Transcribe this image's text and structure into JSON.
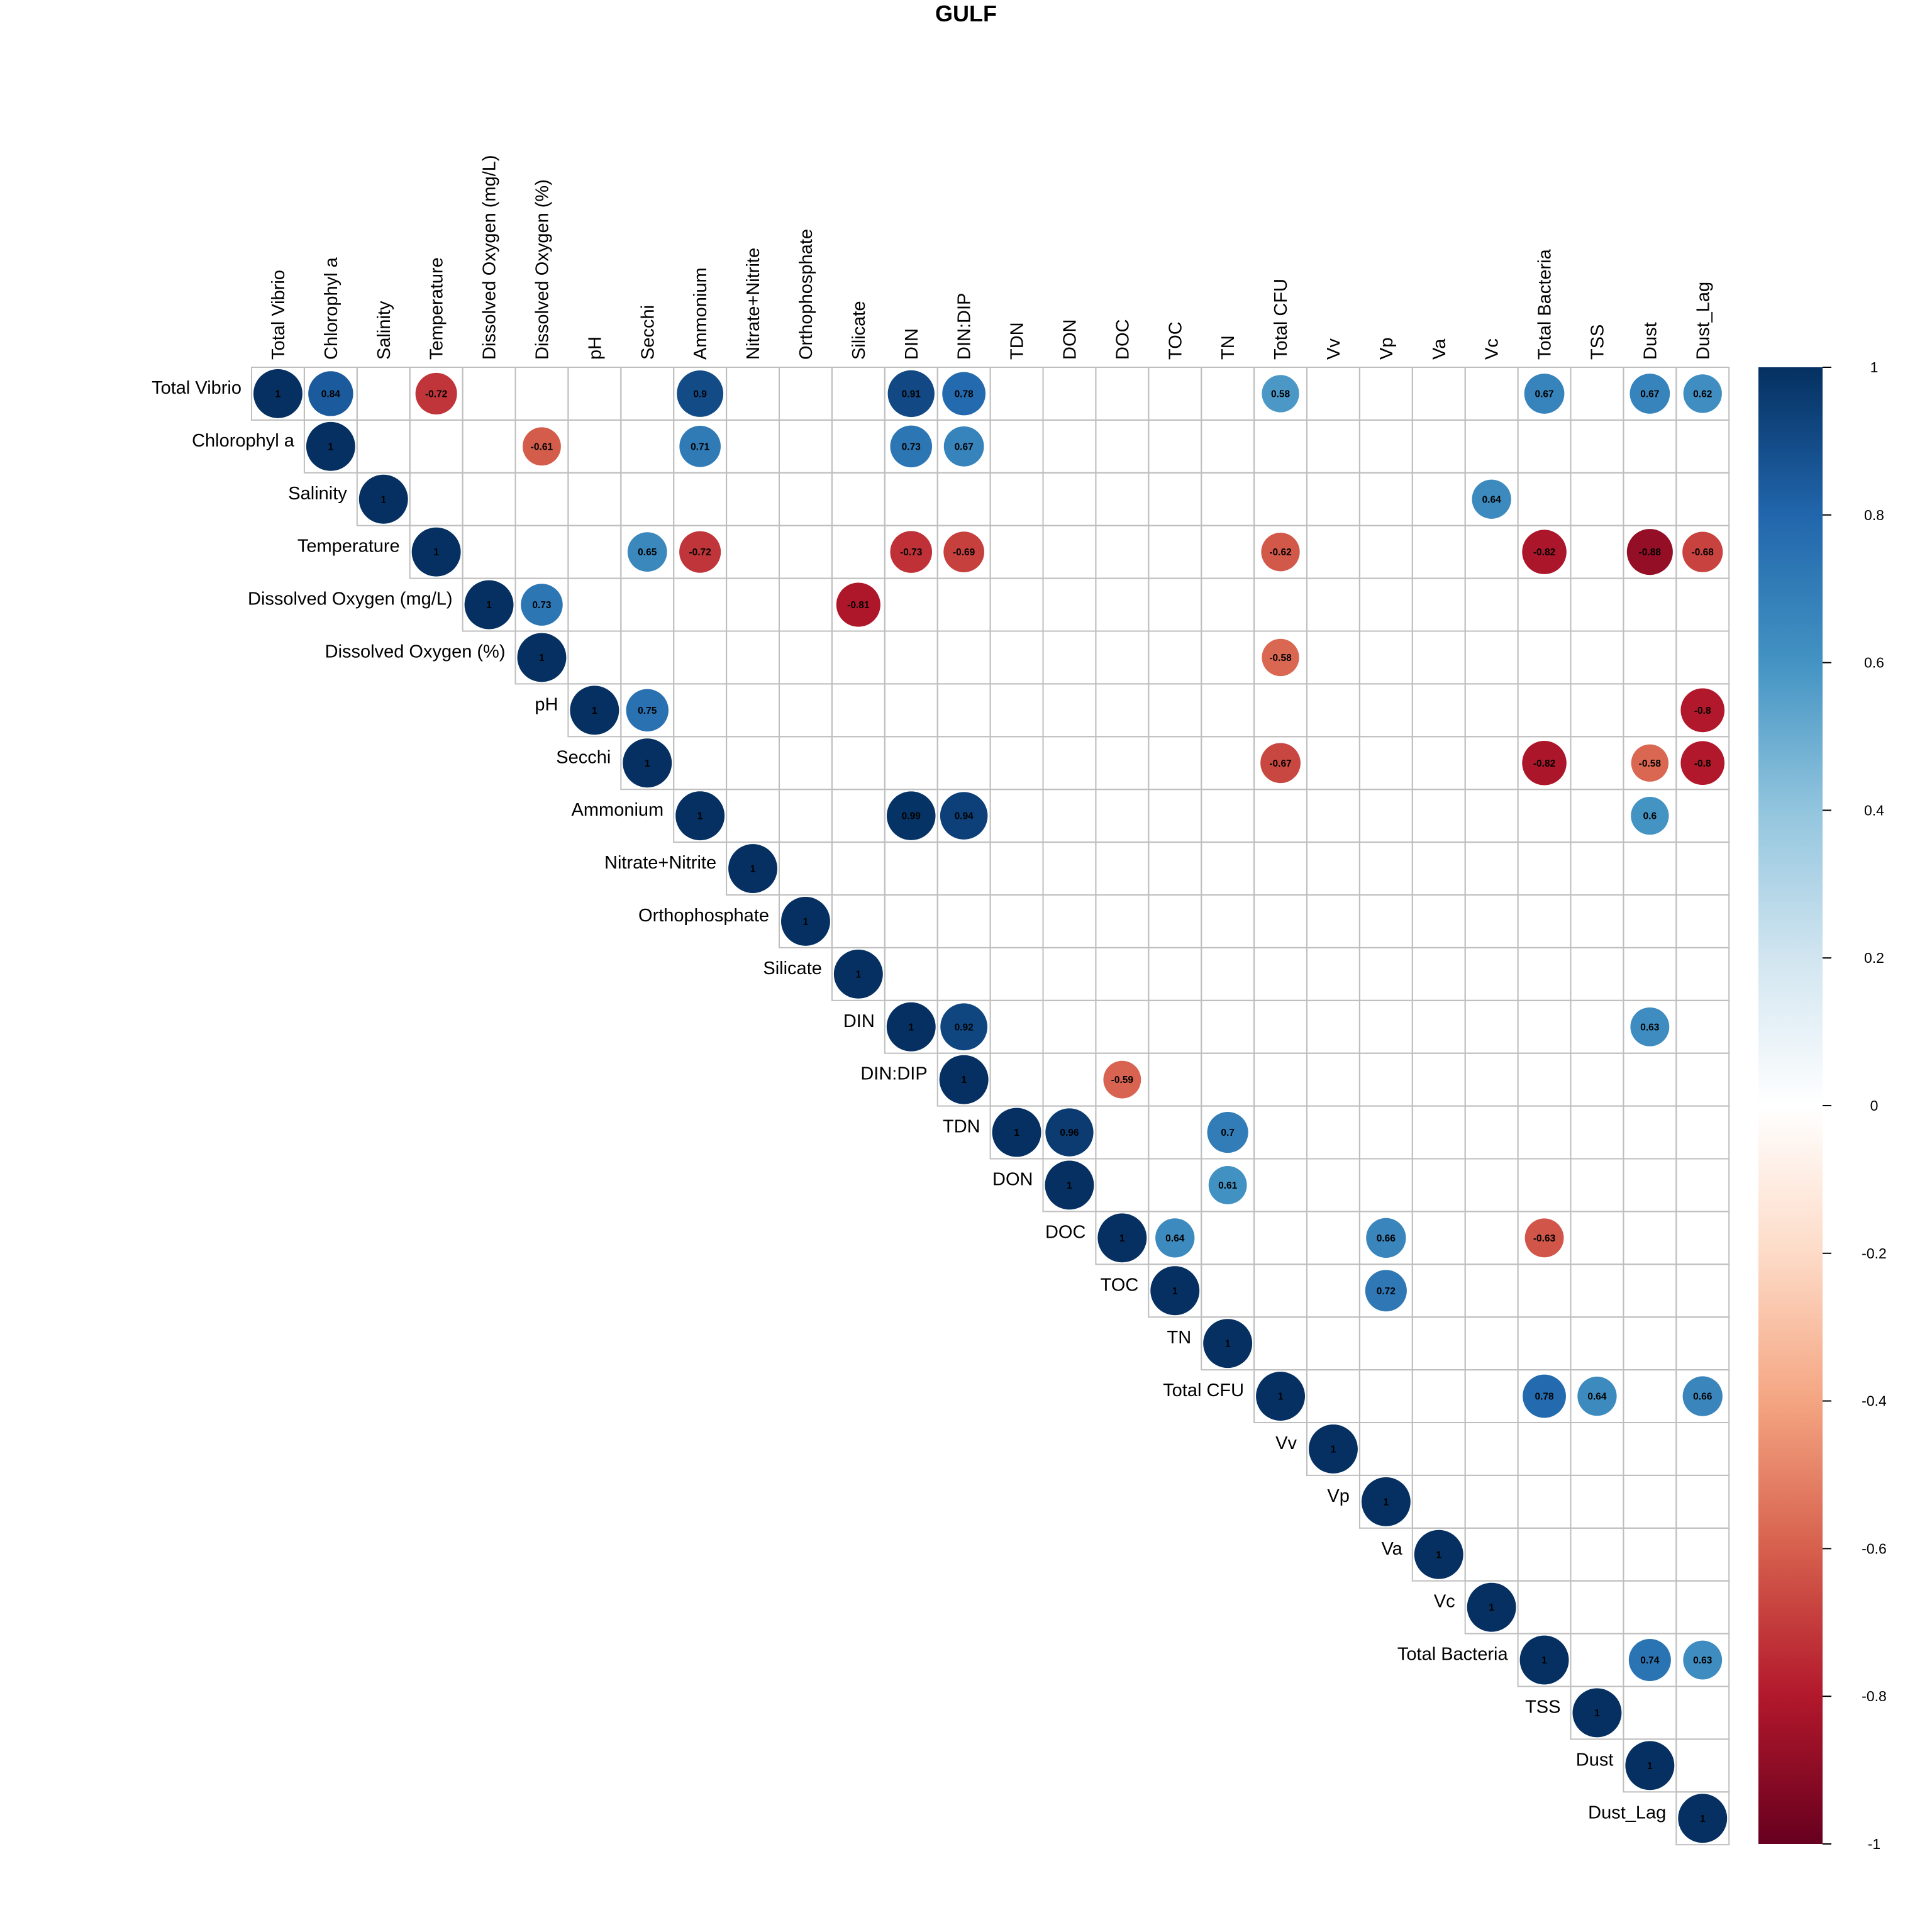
{
  "chart_data": {
    "type": "heatmap",
    "subtype": "correlation-matrix-upper-circles",
    "title": "GULF",
    "variables": [
      "Total Vibrio",
      "Chlorophyl a",
      "Salinity",
      "Temperature",
      "Dissolved Oxygen (mg/L)",
      "Dissolved Oxygen (%)",
      "pH",
      "Secchi",
      "Ammonium",
      "Nitrate+Nitrite",
      "Orthophosphate",
      "Silicate",
      "DIN",
      "DIN:DIP",
      "TDN",
      "DON",
      "DOC",
      "TOC",
      "TN",
      "Total CFU",
      "Vv",
      "Vp",
      "Va",
      "Vc",
      "Total Bacteria",
      "TSS",
      "Dust",
      "Dust_Lag"
    ],
    "correlations": [
      {
        "row": "Total Vibrio",
        "col": "Total Vibrio",
        "value": 1,
        "label": "1"
      },
      {
        "row": "Total Vibrio",
        "col": "Chlorophyl a",
        "value": 0.84,
        "label": "0.84"
      },
      {
        "row": "Total Vibrio",
        "col": "Temperature",
        "value": -0.72,
        "label": "-0.72"
      },
      {
        "row": "Total Vibrio",
        "col": "Ammonium",
        "value": 0.9,
        "label": "0.9"
      },
      {
        "row": "Total Vibrio",
        "col": "DIN",
        "value": 0.91,
        "label": "0.91"
      },
      {
        "row": "Total Vibrio",
        "col": "DIN:DIP",
        "value": 0.78,
        "label": "0.78"
      },
      {
        "row": "Total Vibrio",
        "col": "Total CFU",
        "value": 0.58,
        "label": "0.58"
      },
      {
        "row": "Total Vibrio",
        "col": "Total Bacteria",
        "value": 0.67,
        "label": "0.67"
      },
      {
        "row": "Total Vibrio",
        "col": "Dust",
        "value": 0.67,
        "label": "0.67"
      },
      {
        "row": "Total Vibrio",
        "col": "Dust_Lag",
        "value": 0.62,
        "label": "0.62"
      },
      {
        "row": "Chlorophyl a",
        "col": "Chlorophyl a",
        "value": 1,
        "label": "1"
      },
      {
        "row": "Chlorophyl a",
        "col": "Dissolved Oxygen (%)",
        "value": -0.61,
        "label": "-0.61"
      },
      {
        "row": "Chlorophyl a",
        "col": "Ammonium",
        "value": 0.71,
        "label": "0.71"
      },
      {
        "row": "Chlorophyl a",
        "col": "DIN",
        "value": 0.73,
        "label": "0.73"
      },
      {
        "row": "Chlorophyl a",
        "col": "DIN:DIP",
        "value": 0.67,
        "label": "0.67"
      },
      {
        "row": "Salinity",
        "col": "Salinity",
        "value": 1,
        "label": "1"
      },
      {
        "row": "Salinity",
        "col": "Vc",
        "value": 0.64,
        "label": "0.64"
      },
      {
        "row": "Temperature",
        "col": "Temperature",
        "value": 1,
        "label": "1"
      },
      {
        "row": "Temperature",
        "col": "Secchi",
        "value": 0.65,
        "label": "0.65"
      },
      {
        "row": "Temperature",
        "col": "Ammonium",
        "value": -0.72,
        "label": "-0.72"
      },
      {
        "row": "Temperature",
        "col": "DIN",
        "value": -0.73,
        "label": "-0.73"
      },
      {
        "row": "Temperature",
        "col": "DIN:DIP",
        "value": -0.69,
        "label": "-0.69"
      },
      {
        "row": "Temperature",
        "col": "Total CFU",
        "value": -0.62,
        "label": "-0.62"
      },
      {
        "row": "Temperature",
        "col": "Total Bacteria",
        "value": -0.82,
        "label": "-0.82"
      },
      {
        "row": "Temperature",
        "col": "Dust",
        "value": -0.88,
        "label": "-0.88"
      },
      {
        "row": "Temperature",
        "col": "Dust_Lag",
        "value": -0.68,
        "label": "-0.68"
      },
      {
        "row": "Dissolved Oxygen (mg/L)",
        "col": "Dissolved Oxygen (mg/L)",
        "value": 1,
        "label": "1"
      },
      {
        "row": "Dissolved Oxygen (mg/L)",
        "col": "Dissolved Oxygen (%)",
        "value": 0.73,
        "label": "0.73"
      },
      {
        "row": "Dissolved Oxygen (mg/L)",
        "col": "Silicate",
        "value": -0.81,
        "label": "-0.81"
      },
      {
        "row": "Dissolved Oxygen (%)",
        "col": "Dissolved Oxygen (%)",
        "value": 1,
        "label": "1"
      },
      {
        "row": "Dissolved Oxygen (%)",
        "col": "Total CFU",
        "value": -0.58,
        "label": "-0.58"
      },
      {
        "row": "pH",
        "col": "pH",
        "value": 1,
        "label": "1"
      },
      {
        "row": "pH",
        "col": "Secchi",
        "value": 0.75,
        "label": "0.75"
      },
      {
        "row": "pH",
        "col": "Dust_Lag",
        "value": -0.8,
        "label": "-0.8"
      },
      {
        "row": "Secchi",
        "col": "Secchi",
        "value": 1,
        "label": "1"
      },
      {
        "row": "Secchi",
        "col": "Total CFU",
        "value": -0.67,
        "label": "-0.67"
      },
      {
        "row": "Secchi",
        "col": "Total Bacteria",
        "value": -0.82,
        "label": "-0.82"
      },
      {
        "row": "Secchi",
        "col": "Dust",
        "value": -0.58,
        "label": "-0.58"
      },
      {
        "row": "Secchi",
        "col": "Dust_Lag",
        "value": -0.8,
        "label": "-0.8"
      },
      {
        "row": "Ammonium",
        "col": "Ammonium",
        "value": 1,
        "label": "1"
      },
      {
        "row": "Ammonium",
        "col": "DIN",
        "value": 0.99,
        "label": "0.99"
      },
      {
        "row": "Ammonium",
        "col": "DIN:DIP",
        "value": 0.94,
        "label": "0.94"
      },
      {
        "row": "Ammonium",
        "col": "Dust",
        "value": 0.6,
        "label": "0.6"
      },
      {
        "row": "Nitrate+Nitrite",
        "col": "Nitrate+Nitrite",
        "value": 1,
        "label": "1"
      },
      {
        "row": "Orthophosphate",
        "col": "Orthophosphate",
        "value": 1,
        "label": "1"
      },
      {
        "row": "Silicate",
        "col": "Silicate",
        "value": 1,
        "label": "1"
      },
      {
        "row": "DIN",
        "col": "DIN",
        "value": 1,
        "label": "1"
      },
      {
        "row": "DIN",
        "col": "DIN:DIP",
        "value": 0.92,
        "label": "0.92"
      },
      {
        "row": "DIN",
        "col": "Dust",
        "value": 0.63,
        "label": "0.63"
      },
      {
        "row": "DIN:DIP",
        "col": "DIN:DIP",
        "value": 1,
        "label": "1"
      },
      {
        "row": "DIN:DIP",
        "col": "DOC",
        "value": -0.59,
        "label": "-0.59"
      },
      {
        "row": "TDN",
        "col": "TDN",
        "value": 1,
        "label": "1"
      },
      {
        "row": "TDN",
        "col": "DON",
        "value": 0.96,
        "label": "0.96"
      },
      {
        "row": "TDN",
        "col": "TN",
        "value": 0.7,
        "label": "0.7"
      },
      {
        "row": "DON",
        "col": "DON",
        "value": 1,
        "label": "1"
      },
      {
        "row": "DON",
        "col": "TN",
        "value": 0.61,
        "label": "0.61"
      },
      {
        "row": "DOC",
        "col": "DOC",
        "value": 1,
        "label": "1"
      },
      {
        "row": "DOC",
        "col": "TOC",
        "value": 0.64,
        "label": "0.64"
      },
      {
        "row": "DOC",
        "col": "Vp",
        "value": 0.66,
        "label": "0.66"
      },
      {
        "row": "DOC",
        "col": "Total Bacteria",
        "value": -0.63,
        "label": "-0.63"
      },
      {
        "row": "TOC",
        "col": "TOC",
        "value": 1,
        "label": "1"
      },
      {
        "row": "TOC",
        "col": "Vp",
        "value": 0.72,
        "label": "0.72"
      },
      {
        "row": "TN",
        "col": "TN",
        "value": 1,
        "label": "1"
      },
      {
        "row": "Total CFU",
        "col": "Total CFU",
        "value": 1,
        "label": "1"
      },
      {
        "row": "Total CFU",
        "col": "Total Bacteria",
        "value": 0.78,
        "label": "0.78"
      },
      {
        "row": "Total CFU",
        "col": "TSS",
        "value": 0.64,
        "label": "0.64"
      },
      {
        "row": "Total CFU",
        "col": "Dust_Lag",
        "value": 0.66,
        "label": "0.66"
      },
      {
        "row": "Vv",
        "col": "Vv",
        "value": 1,
        "label": "1"
      },
      {
        "row": "Vp",
        "col": "Vp",
        "value": 1,
        "label": "1"
      },
      {
        "row": "Va",
        "col": "Va",
        "value": 1,
        "label": "1"
      },
      {
        "row": "Vc",
        "col": "Vc",
        "value": 1,
        "label": "1"
      },
      {
        "row": "Total Bacteria",
        "col": "Total Bacteria",
        "value": 1,
        "label": "1"
      },
      {
        "row": "Total Bacteria",
        "col": "Dust",
        "value": 0.74,
        "label": "0.74"
      },
      {
        "row": "Total Bacteria",
        "col": "Dust_Lag",
        "value": 0.63,
        "label": "0.63"
      },
      {
        "row": "TSS",
        "col": "TSS",
        "value": 1,
        "label": "1"
      },
      {
        "row": "Dust",
        "col": "Dust",
        "value": 1,
        "label": "1"
      },
      {
        "row": "Dust_Lag",
        "col": "Dust_Lag",
        "value": 1,
        "label": "1"
      }
    ],
    "colorbar": {
      "range": [
        -1,
        1
      ],
      "ticks": [
        1,
        0.8,
        0.6,
        0.4,
        0.2,
        0,
        -0.2,
        -0.4,
        -0.6,
        -0.8,
        -1
      ],
      "tick_labels": [
        "1",
        "0.8",
        "0.6",
        "0.4",
        "0.2",
        "0",
        "-0.2",
        "-0.4",
        "-0.6",
        "-0.8",
        "-1"
      ],
      "colors": [
        "#67001F",
        "#B2182B",
        "#D6604D",
        "#F4A582",
        "#FDDBC7",
        "#FFFFFF",
        "#D1E5F0",
        "#92C5DE",
        "#4393C3",
        "#2166AC",
        "#053061"
      ]
    },
    "grid": true,
    "legend_position": "right"
  }
}
